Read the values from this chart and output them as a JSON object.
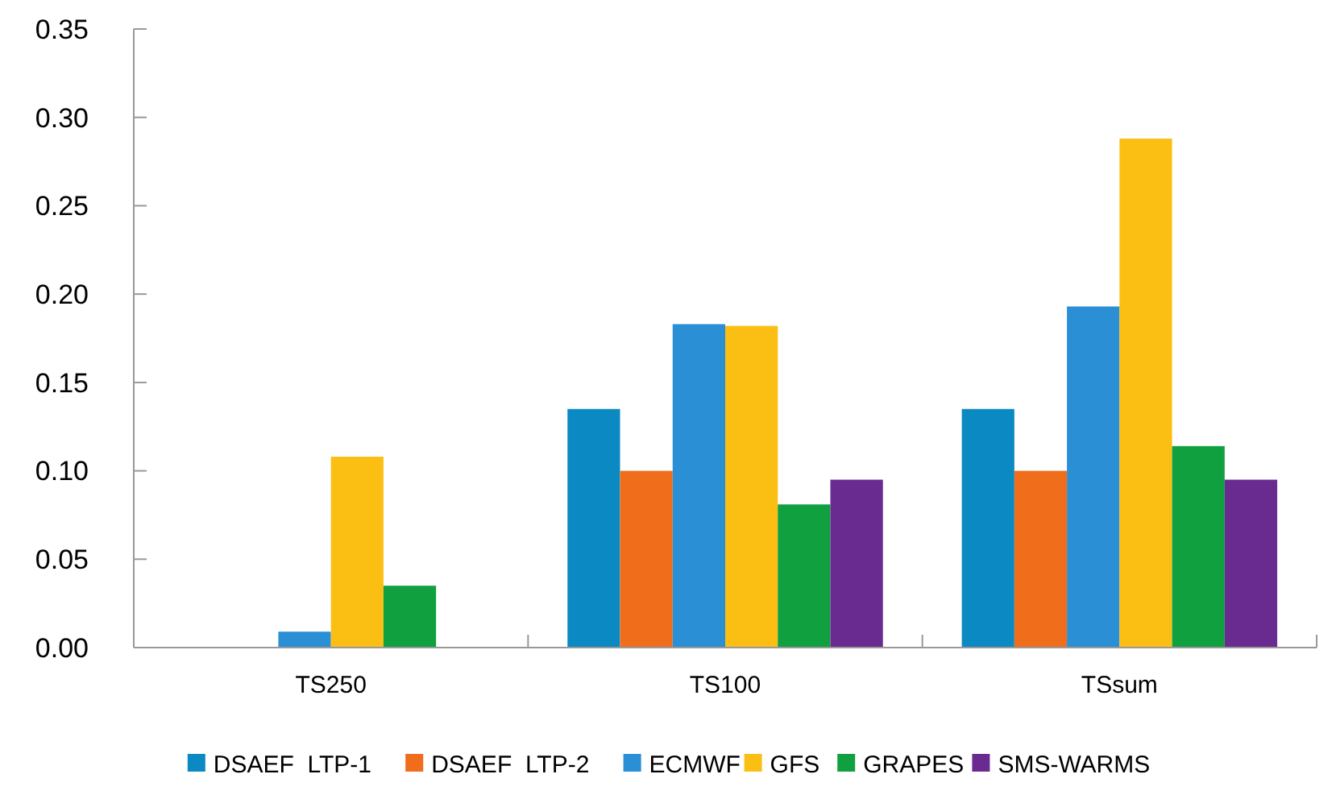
{
  "chart_data": {
    "type": "bar",
    "categories": [
      "TS250",
      "TS100",
      "TSsum"
    ],
    "series": [
      {
        "name": "DSAEF  LTP-1",
        "color": "#0b89c2",
        "values": [
          0,
          0.135,
          0.135
        ]
      },
      {
        "name": "DSAEF  LTP-2",
        "color": "#f06d1c",
        "values": [
          0,
          0.1,
          0.1
        ]
      },
      {
        "name": "ECMWF",
        "color": "#2a8fd4",
        "values": [
          0.009,
          0.183,
          0.193
        ]
      },
      {
        "name": "GFS",
        "color": "#fbbf13",
        "values": [
          0.108,
          0.182,
          0.288
        ]
      },
      {
        "name": "GRAPES",
        "color": "#10a040",
        "values": [
          0.035,
          0.081,
          0.114
        ]
      },
      {
        "name": "SMS-WARMS",
        "color": "#6a2b90",
        "values": [
          0,
          0.095,
          0.095
        ]
      }
    ],
    "ylim": [
      0,
      0.35
    ],
    "yticks": [
      {
        "value": 0,
        "label": "0.00"
      },
      {
        "value": 0.05,
        "label": "0.05"
      },
      {
        "value": 0.1,
        "label": "0.10"
      },
      {
        "value": 0.15,
        "label": "0.15"
      },
      {
        "value": 0.2,
        "label": "0.20"
      },
      {
        "value": 0.25,
        "label": "0.25"
      },
      {
        "value": 0.3,
        "label": "0.30"
      },
      {
        "value": 0.35,
        "label": "0.35"
      }
    ],
    "grid": false,
    "legend": "bottom"
  }
}
